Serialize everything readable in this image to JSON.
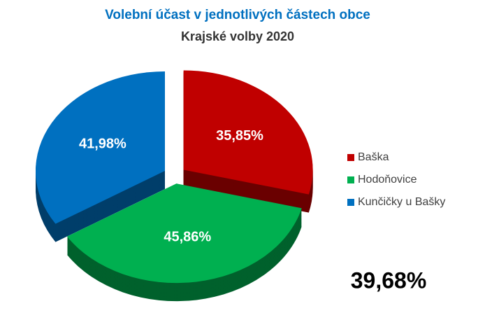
{
  "chart_data": {
    "type": "pie",
    "title": "Volební účast v jednotlivých částech obce",
    "subtitle": "Krajské volby 2020",
    "categories": [
      "Baška",
      "Hodoňovice",
      "Kunčičky u Bašky"
    ],
    "values": [
      35.85,
      45.86,
      41.98
    ],
    "value_labels": [
      "35,85%",
      "45,86%",
      "41,98%"
    ],
    "colors": [
      "#c00000",
      "#00b050",
      "#0070c0"
    ],
    "legend": "right",
    "annotation": "39,68%"
  }
}
